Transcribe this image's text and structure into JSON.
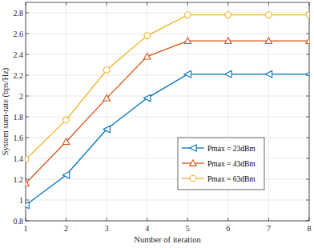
{
  "chart_data": {
    "type": "line",
    "x_label": "Number of iteration",
    "y_label": "System sum-rate (bps/Hz)",
    "x": [
      1,
      2,
      3,
      4,
      5,
      6,
      7,
      8
    ],
    "series": [
      {
        "name": "Pmax = 23dBm",
        "color": "#0072bd",
        "marker": "triangle-left",
        "line_style": "solid",
        "values": [
          0.95,
          1.24,
          1.68,
          1.98,
          2.21,
          2.21,
          2.21,
          2.21
        ]
      },
      {
        "name": "Pmax = 43dBm",
        "color": "#d95319",
        "marker": "triangle-up",
        "line_style": "solid",
        "values": [
          1.16,
          1.56,
          1.98,
          2.38,
          2.53,
          2.53,
          2.53,
          2.53
        ]
      },
      {
        "name": "Pmax = 63dBm",
        "color": "#edb120",
        "marker": "circle",
        "line_style": "solid",
        "values": [
          1.39,
          1.77,
          2.25,
          2.58,
          2.78,
          2.78,
          2.78,
          2.78
        ]
      }
    ],
    "xlim": [
      1,
      8
    ],
    "xticks": [
      1,
      2,
      3,
      4,
      5,
      6,
      7,
      8
    ],
    "ylim": [
      0.8,
      2.9
    ],
    "yticks": [
      0.8,
      1,
      1.2,
      1.4,
      1.6,
      1.8,
      2,
      2.2,
      2.4,
      2.6,
      2.8
    ],
    "grid": true,
    "legend": "right"
  }
}
